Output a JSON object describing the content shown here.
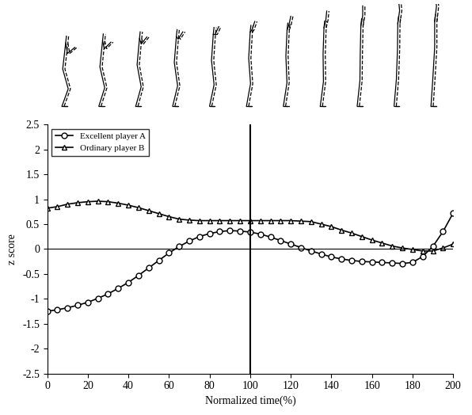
{
  "chart_data": {
    "type": "line",
    "x_label": "Normalized time(%)",
    "y_label": "z score",
    "x": [
      0,
      5,
      10,
      15,
      20,
      25,
      30,
      35,
      40,
      45,
      50,
      55,
      60,
      65,
      70,
      75,
      80,
      85,
      90,
      95,
      100,
      105,
      110,
      115,
      120,
      125,
      130,
      135,
      140,
      145,
      150,
      155,
      160,
      165,
      170,
      175,
      180,
      185,
      190,
      195,
      200
    ],
    "series": [
      {
        "name": "Excellent player A",
        "color": "#000000",
        "marker": "o",
        "values": [
          -1.25,
          -1.22,
          -1.18,
          -1.13,
          -1.07,
          -0.99,
          -0.9,
          -0.79,
          -0.67,
          -0.53,
          -0.38,
          -0.23,
          -0.08,
          0.05,
          0.16,
          0.25,
          0.31,
          0.35,
          0.37,
          0.36,
          0.34,
          0.3,
          0.24,
          0.17,
          0.1,
          0.03,
          -0.04,
          -0.1,
          -0.16,
          -0.2,
          -0.23,
          -0.25,
          -0.26,
          -0.27,
          -0.28,
          -0.29,
          -0.27,
          -0.15,
          0.05,
          0.35,
          0.72
        ]
      },
      {
        "name": "Ordinary player B",
        "color": "#000000",
        "marker": "^",
        "values": [
          0.82,
          0.85,
          0.9,
          0.93,
          0.95,
          0.96,
          0.95,
          0.92,
          0.88,
          0.83,
          0.77,
          0.71,
          0.65,
          0.6,
          0.58,
          0.57,
          0.57,
          0.57,
          0.57,
          0.57,
          0.57,
          0.57,
          0.57,
          0.57,
          0.57,
          0.56,
          0.55,
          0.5,
          0.45,
          0.38,
          0.32,
          0.25,
          0.18,
          0.12,
          0.06,
          0.02,
          -0.01,
          -0.04,
          -0.04,
          0.02,
          0.1
        ]
      }
    ],
    "vline": 100,
    "hline": 0,
    "xlim": [
      0,
      200
    ],
    "xticks": [
      0,
      20,
      40,
      60,
      80,
      100,
      120,
      140,
      160,
      180,
      200
    ],
    "ylim": [
      -2.5,
      2.5
    ],
    "yticks": [
      -2.5,
      -2,
      -1.5,
      -1,
      -0.5,
      0,
      0.5,
      1,
      1.5,
      2,
      2.5
    ],
    "legend": "upper left"
  }
}
